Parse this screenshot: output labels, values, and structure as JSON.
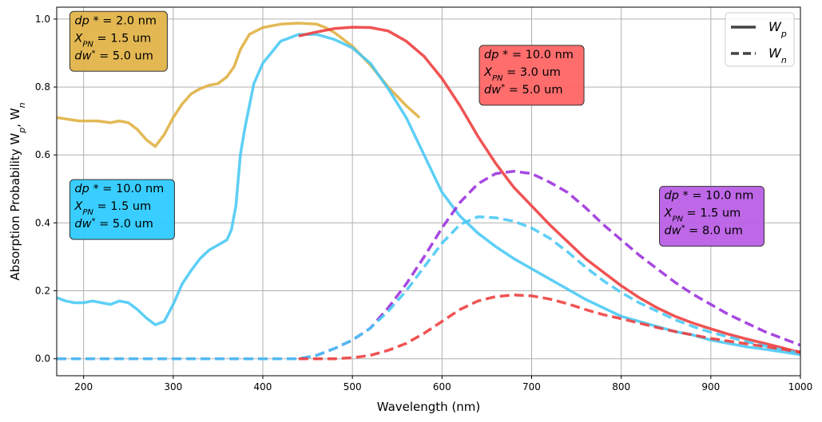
{
  "chart_data": {
    "type": "line",
    "title": "",
    "xlabel": "Wavelength (nm)",
    "ylabel": "Absorption Probability W",
    "ylabel_sub_p": "p",
    "ylabel_sep": ", W",
    "ylabel_sub_n": "n",
    "xlim": [
      170,
      1000
    ],
    "ylim": [
      -0.05,
      1.035
    ],
    "xticks": [
      200,
      300,
      400,
      500,
      600,
      700,
      800,
      900,
      1000
    ],
    "xtick_labels": [
      "200",
      "300",
      "400",
      "500",
      "600",
      "700",
      "800",
      "900",
      "1000"
    ],
    "yticks": [
      0.0,
      0.2,
      0.4,
      0.6,
      0.8,
      1.0
    ],
    "ytick_labels": [
      "0.0",
      "0.2",
      "0.4",
      "0.6",
      "0.8",
      "1.0"
    ],
    "grid": true,
    "legend": {
      "position": "top-right",
      "entries": [
        {
          "symbol": "W",
          "sub": "p",
          "style": "solid"
        },
        {
          "symbol": "W",
          "sub": "n",
          "style": "dashed"
        }
      ]
    },
    "series": [
      {
        "name": "gold Wp (dp*=2.0 nm)",
        "color": "#DFAF3F",
        "style": "solid",
        "x": [
          170,
          195,
          205,
          215,
          230,
          240,
          250,
          260,
          270,
          280,
          290,
          300,
          310,
          320,
          330,
          340,
          350,
          360,
          368,
          375,
          385,
          400,
          420,
          440,
          460,
          470,
          480,
          500,
          520,
          540,
          560,
          575
        ],
        "y": [
          0.71,
          0.7,
          0.7,
          0.7,
          0.695,
          0.7,
          0.695,
          0.675,
          0.645,
          0.625,
          0.66,
          0.71,
          0.75,
          0.78,
          0.795,
          0.805,
          0.81,
          0.83,
          0.86,
          0.91,
          0.955,
          0.975,
          0.985,
          0.988,
          0.985,
          0.975,
          0.96,
          0.92,
          0.865,
          0.8,
          0.745,
          0.71
        ]
      },
      {
        "name": "blue Wp (dp*=10.0 nm)",
        "color": "#47C8F5",
        "style": "solid",
        "x": [
          170,
          180,
          190,
          200,
          210,
          220,
          230,
          240,
          250,
          260,
          270,
          280,
          290,
          300,
          310,
          320,
          330,
          340,
          350,
          360,
          365,
          370,
          375,
          380,
          390,
          400,
          420,
          440,
          460,
          480,
          500,
          520,
          540,
          560,
          580,
          600,
          620,
          640,
          660,
          680,
          700,
          720,
          740,
          760,
          780,
          800,
          820,
          840,
          860,
          880,
          900,
          920,
          940,
          960,
          980,
          1000
        ],
        "y": [
          0.18,
          0.17,
          0.165,
          0.165,
          0.17,
          0.165,
          0.16,
          0.17,
          0.165,
          0.145,
          0.12,
          0.1,
          0.11,
          0.16,
          0.22,
          0.26,
          0.295,
          0.32,
          0.335,
          0.35,
          0.38,
          0.45,
          0.6,
          0.68,
          0.81,
          0.87,
          0.935,
          0.955,
          0.955,
          0.94,
          0.915,
          0.87,
          0.795,
          0.71,
          0.6,
          0.49,
          0.42,
          0.37,
          0.33,
          0.295,
          0.265,
          0.235,
          0.205,
          0.175,
          0.15,
          0.125,
          0.11,
          0.095,
          0.08,
          0.07,
          0.055,
          0.045,
          0.035,
          0.028,
          0.02,
          0.012
        ]
      },
      {
        "name": "red Wp (dp*=10.0 nm, XPN=3.0 um)",
        "color": "#EE3B3B",
        "style": "solid",
        "x": [
          440,
          460,
          480,
          500,
          520,
          540,
          560,
          580,
          600,
          620,
          640,
          660,
          680,
          700,
          720,
          740,
          760,
          780,
          800,
          820,
          840,
          860,
          880,
          900,
          920,
          940,
          960,
          980,
          1000
        ],
        "y": [
          0.95,
          0.962,
          0.972,
          0.976,
          0.975,
          0.965,
          0.935,
          0.89,
          0.825,
          0.745,
          0.655,
          0.575,
          0.505,
          0.45,
          0.395,
          0.345,
          0.295,
          0.255,
          0.215,
          0.18,
          0.15,
          0.125,
          0.105,
          0.088,
          0.072,
          0.058,
          0.045,
          0.032,
          0.018
        ]
      },
      {
        "name": "purple Wn (dp*=10.0 nm, dw*=8.0 um)",
        "color": "#9B2FDD",
        "style": "dashed",
        "x": [
          170,
          440,
          460,
          480,
          500,
          520,
          540,
          560,
          580,
          600,
          620,
          640,
          660,
          680,
          700,
          720,
          740,
          760,
          780,
          800,
          820,
          840,
          860,
          880,
          900,
          920,
          940,
          960,
          980,
          1000
        ],
        "y": [
          0.0,
          0.0,
          0.01,
          0.03,
          0.055,
          0.09,
          0.15,
          0.22,
          0.3,
          0.385,
          0.46,
          0.515,
          0.545,
          0.552,
          0.545,
          0.52,
          0.49,
          0.445,
          0.395,
          0.35,
          0.305,
          0.265,
          0.225,
          0.19,
          0.16,
          0.13,
          0.105,
          0.08,
          0.06,
          0.04
        ]
      },
      {
        "name": "blue Wn (dp*=10.0 nm, dw*=5.0 um)",
        "color": "#47C8F5",
        "style": "dashed",
        "x": [
          170,
          440,
          460,
          480,
          500,
          520,
          540,
          560,
          580,
          600,
          620,
          640,
          660,
          680,
          700,
          720,
          740,
          760,
          780,
          800,
          820,
          840,
          860,
          880,
          900,
          920,
          940,
          960,
          980,
          1000
        ],
        "y": [
          0.0,
          0.0,
          0.01,
          0.03,
          0.055,
          0.09,
          0.14,
          0.2,
          0.27,
          0.34,
          0.395,
          0.418,
          0.415,
          0.405,
          0.385,
          0.355,
          0.315,
          0.27,
          0.23,
          0.195,
          0.165,
          0.14,
          0.115,
          0.095,
          0.078,
          0.064,
          0.05,
          0.038,
          0.026,
          0.016
        ]
      },
      {
        "name": "red Wn (dp*=10.0 nm, XPN=3.0 um)",
        "color": "#EE3B3B",
        "style": "dashed",
        "x": [
          440,
          460,
          480,
          500,
          520,
          540,
          560,
          580,
          600,
          620,
          640,
          660,
          680,
          700,
          720,
          740,
          760,
          780,
          800,
          820,
          840,
          860,
          880,
          900,
          920,
          940,
          960,
          980,
          1000
        ],
        "y": [
          0.0,
          0.0,
          0.0,
          0.003,
          0.01,
          0.025,
          0.045,
          0.075,
          0.11,
          0.145,
          0.17,
          0.183,
          0.188,
          0.185,
          0.176,
          0.162,
          0.145,
          0.13,
          0.118,
          0.105,
          0.092,
          0.08,
          0.07,
          0.06,
          0.052,
          0.044,
          0.036,
          0.028,
          0.02
        ]
      }
    ],
    "annotations": [
      {
        "id": "gold",
        "bg": "#E2B44A",
        "x": 190,
        "y": 0.985,
        "lines": [
          {
            "var": "dp",
            "sup": "",
            "mid": "*",
            "rest": " =  2.0 nm"
          },
          {
            "var": "X",
            "sub": "PN",
            "rest": " = 1.5 um"
          },
          {
            "var": "dw",
            "sup": "*",
            "rest": " =  5.0 um"
          }
        ]
      },
      {
        "id": "red",
        "bg": "#FF6565",
        "x": 647,
        "y": 0.885,
        "lines": [
          {
            "var": "dp",
            "sup": "",
            "mid": "*",
            "rest": " =  10.0 nm"
          },
          {
            "var": "X",
            "sub": "PN",
            "rest": " = 3.0 um"
          },
          {
            "var": "dw",
            "sup": "*",
            "rest": " =  5.0 um"
          }
        ]
      },
      {
        "id": "blue",
        "bg": "#2ECBFF",
        "x": 190,
        "y": 0.49,
        "lines": [
          {
            "var": "dp",
            "sup": "",
            "mid": "*",
            "rest": " =  10.0 nm"
          },
          {
            "var": "X",
            "sub": "PN",
            "rest": " = 1.5 um"
          },
          {
            "var": "dw",
            "sup": "*",
            "rest": " =  5.0 um"
          }
        ]
      },
      {
        "id": "purple",
        "bg": "#BB5FE6",
        "x": 848,
        "y": 0.47,
        "lines": [
          {
            "var": "dp",
            "sup": "",
            "mid": "*",
            "rest": " =  10.0 nm"
          },
          {
            "var": "X",
            "sub": "PN",
            "rest": " = 1.5 um"
          },
          {
            "var": "dw",
            "sup": "*",
            "rest": " =  8.0 um"
          }
        ]
      }
    ]
  }
}
